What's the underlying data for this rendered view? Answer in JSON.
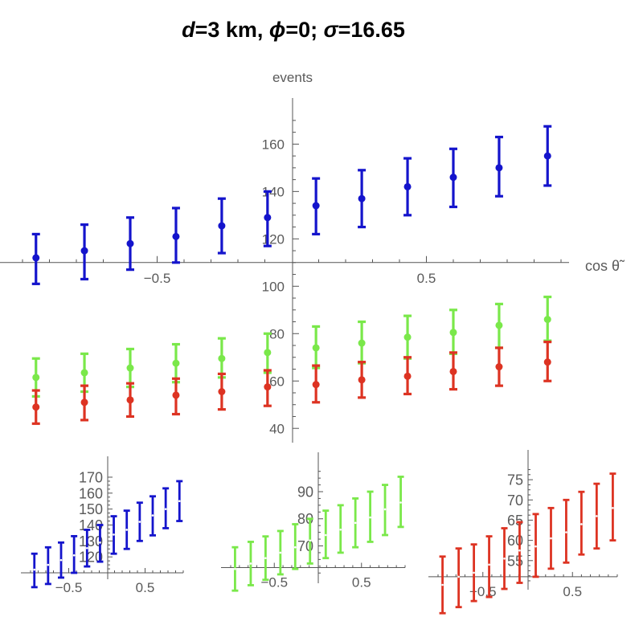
{
  "title": "d=3 km, ϕ=0; σ=16.65",
  "title_parts": [
    "d",
    "=3 km, ",
    "ϕ",
    "=0; ",
    "σ",
    "=16.65"
  ],
  "colors": {
    "blue": "#1414cc",
    "green": "#7ae84a",
    "red": "#dd3322",
    "axis": "#555555",
    "text": "#5a5a5a"
  },
  "chart_data": [
    {
      "type": "scatter",
      "panel": "main",
      "xlabel": "cos θ̃",
      "ylabel": "events",
      "xlim": [
        -1,
        1
      ],
      "ylim": [
        36,
        172
      ],
      "x_axis_crossing_y": 110,
      "xticks": [
        -0.5,
        0.5
      ],
      "xtick_labels": [
        "−0.5",
        "0.5"
      ],
      "yticks": [
        40,
        60,
        80,
        100,
        120,
        140,
        160
      ],
      "ytick_labels": [
        "40",
        "60",
        "80",
        "100",
        "120",
        "140",
        "160"
      ],
      "x": [
        -0.95,
        -0.77,
        -0.6,
        -0.43,
        -0.26,
        -0.09,
        0.09,
        0.26,
        0.43,
        0.6,
        0.77,
        0.95
      ],
      "series": [
        {
          "color": "blue",
          "values": [
            112,
            115,
            118,
            121,
            125.5,
            129,
            134,
            137,
            142,
            146,
            150,
            155
          ],
          "lower": [
            101,
            103,
            107,
            110,
            114,
            117,
            122,
            125,
            130,
            133.5,
            138,
            142.5
          ],
          "upper": [
            122,
            126,
            129,
            133,
            137,
            140,
            145.5,
            149,
            154,
            158,
            163,
            167.5
          ]
        },
        {
          "color": "green",
          "values": [
            61.5,
            63.5,
            65.5,
            67.5,
            69.5,
            72,
            74,
            76,
            78.5,
            80.5,
            83.5,
            86
          ],
          "lower": [
            53.5,
            55.5,
            57.5,
            59.5,
            61.5,
            63.5,
            65.5,
            67.5,
            69.5,
            71.5,
            74,
            77
          ],
          "upper": [
            69.5,
            71.5,
            73.5,
            75.5,
            78,
            80,
            83,
            85,
            87.5,
            90,
            92.5,
            95.5
          ]
        },
        {
          "color": "red",
          "values": [
            49,
            51,
            52,
            54,
            55.5,
            57.5,
            58.5,
            60.5,
            62,
            64,
            66,
            68
          ],
          "lower": [
            42,
            43.5,
            45,
            46,
            48,
            49.5,
            51,
            53,
            54.5,
            56.5,
            58,
            60
          ],
          "upper": [
            56,
            58,
            59,
            61,
            63,
            64.5,
            66.5,
            68,
            70,
            72,
            74,
            76.5
          ]
        }
      ]
    },
    {
      "type": "scatter",
      "panel": "small-blue",
      "xlim": [
        -1,
        1
      ],
      "ylim": [
        109,
        172
      ],
      "x_axis_crossing_y": 110,
      "xticks": [
        -0.5,
        0.5
      ],
      "xtick_labels": [
        "−0.5",
        "0.5"
      ],
      "yticks": [
        120,
        130,
        140,
        150,
        160,
        170
      ],
      "ytick_labels": [
        "120",
        "130",
        "140",
        "150",
        "160",
        "170"
      ],
      "x": [
        -0.95,
        -0.77,
        -0.6,
        -0.43,
        -0.26,
        -0.09,
        0.09,
        0.26,
        0.43,
        0.6,
        0.77,
        0.95
      ],
      "series": [
        {
          "color": "blue",
          "values": [
            112,
            115,
            118,
            121,
            125.5,
            129,
            134,
            137,
            142,
            146,
            150,
            155
          ],
          "lower": [
            101,
            103,
            107,
            110,
            114,
            117,
            122,
            125,
            130,
            133.5,
            138,
            142.5
          ],
          "upper": [
            122,
            126,
            129,
            133,
            137,
            140,
            145.5,
            149,
            154,
            158,
            163,
            167.5
          ]
        }
      ]
    },
    {
      "type": "scatter",
      "panel": "small-green",
      "xlim": [
        -1,
        1
      ],
      "ylim": [
        58,
        98
      ],
      "x_axis_crossing_y": 62,
      "xticks": [
        -0.5,
        0.5
      ],
      "xtick_labels": [
        "−0.5",
        "0.5"
      ],
      "yticks": [
        70,
        80,
        90
      ],
      "ytick_labels": [
        "70",
        "80",
        "90"
      ],
      "x": [
        -0.95,
        -0.77,
        -0.6,
        -0.43,
        -0.26,
        -0.09,
        0.09,
        0.26,
        0.43,
        0.6,
        0.77,
        0.95
      ],
      "series": [
        {
          "color": "green",
          "values": [
            61.5,
            63.5,
            65.5,
            67.5,
            69.5,
            72,
            74,
            76,
            78.5,
            80.5,
            83.5,
            86
          ],
          "lower": [
            53.5,
            55.5,
            57.5,
            59.5,
            61.5,
            63.5,
            65.5,
            67.5,
            69.5,
            71.5,
            74,
            77
          ],
          "upper": [
            69.5,
            71.5,
            73.5,
            75.5,
            78,
            80,
            83,
            85,
            87.5,
            90,
            92.5,
            95.5
          ]
        }
      ]
    },
    {
      "type": "scatter",
      "panel": "small-red",
      "xlim": [
        -1,
        1
      ],
      "ylim": [
        49,
        78
      ],
      "x_axis_crossing_y": 51,
      "xticks": [
        -0.5,
        0.5
      ],
      "xtick_labels": [
        "−0.5",
        "0.5"
      ],
      "yticks": [
        55,
        60,
        65,
        70,
        75
      ],
      "ytick_labels": [
        "55",
        "60",
        "65",
        "70",
        "75"
      ],
      "x": [
        -0.95,
        -0.77,
        -0.6,
        -0.43,
        -0.26,
        -0.09,
        0.09,
        0.26,
        0.43,
        0.6,
        0.77,
        0.95
      ],
      "series": [
        {
          "color": "red",
          "values": [
            49,
            51,
            52,
            54,
            55.5,
            57.5,
            58.5,
            60.5,
            62,
            64,
            66,
            68
          ],
          "lower": [
            42,
            43.5,
            45,
            46,
            48,
            49.5,
            51,
            53,
            54.5,
            56.5,
            58,
            60
          ],
          "upper": [
            56,
            58,
            59,
            61,
            63,
            64.5,
            66.5,
            68,
            70,
            72,
            74,
            76.5
          ]
        }
      ]
    }
  ]
}
